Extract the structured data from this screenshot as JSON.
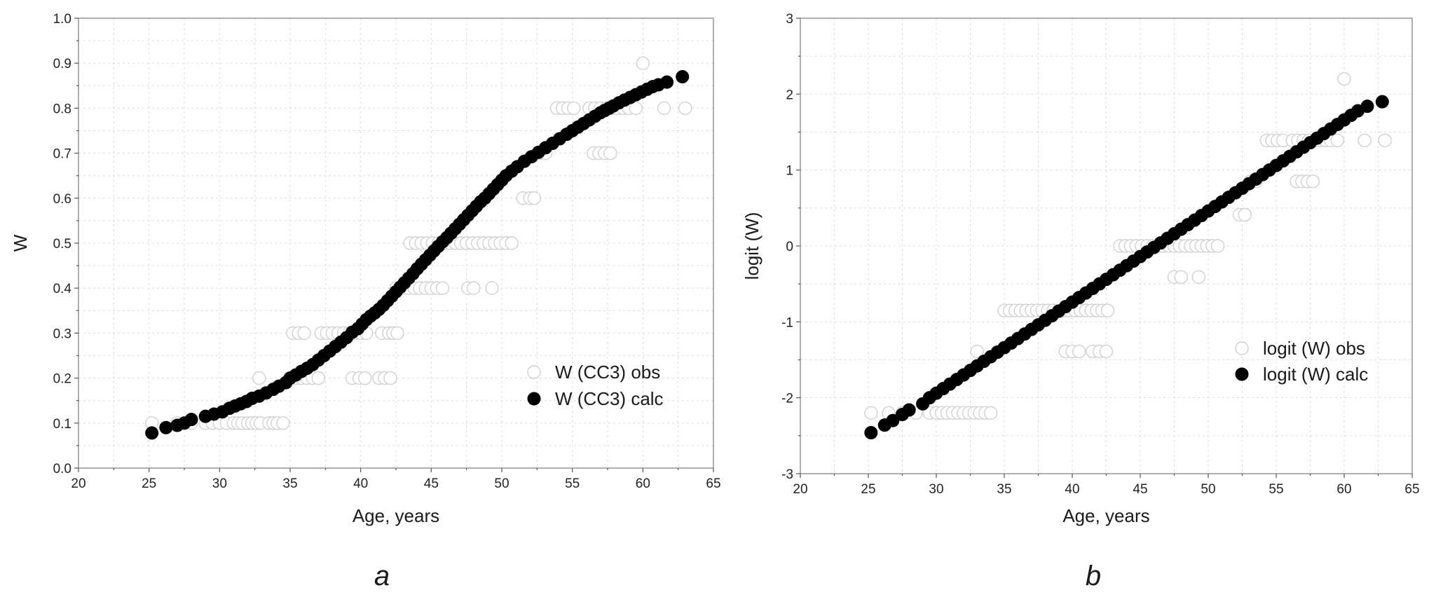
{
  "chart_data": [
    {
      "type": "scatter",
      "panel_label": "a",
      "xlabel": "Age, years",
      "ylabel": "W",
      "xlim": [
        20,
        65
      ],
      "ylim": [
        0.0,
        1.0
      ],
      "xticks": [
        "20",
        "25",
        "30",
        "35",
        "40",
        "45",
        "50",
        "55",
        "60",
        "65"
      ],
      "yticks": [
        "0.0",
        "0.1",
        "0.2",
        "0.3",
        "0.4",
        "0.5",
        "0.6",
        "0.7",
        "0.8",
        "0.9",
        "1.0"
      ],
      "grid": true,
      "legend_position": "bottom-right",
      "series": [
        {
          "name": "W (CC3) obs",
          "marker": "open-circle",
          "color": "#d0d0d0",
          "x": [
            25.2,
            27.0,
            28.0,
            29.0,
            29.5,
            30.0,
            30.5,
            31.0,
            31.3,
            31.6,
            32.0,
            32.3,
            32.6,
            32.9,
            33.5,
            33.8,
            34.1,
            34.5,
            32.8,
            35.0,
            35.4,
            35.8,
            36.2,
            36.6,
            37.0,
            35.2,
            35.6,
            36.0,
            37.2,
            37.6,
            38.0,
            38.4,
            38.8,
            39.2,
            39.6,
            40.0,
            40.4,
            41.5,
            42.0,
            42.3,
            42.6,
            39.4,
            39.9,
            40.3,
            41.3,
            41.7,
            42.1,
            42.5,
            43.0,
            43.4,
            43.8,
            44.2,
            44.6,
            45.0,
            45.4,
            45.8,
            43.5,
            43.9,
            44.3,
            44.7,
            45.1,
            45.5,
            45.9,
            46.3,
            46.7,
            47.1,
            47.5,
            47.9,
            48.3,
            48.7,
            49.1,
            49.5,
            49.9,
            50.3,
            50.7,
            47.6,
            48.0,
            49.3,
            51.5,
            52.0,
            52.3,
            52.7,
            53.1,
            53.9,
            54.3,
            54.7,
            55.1,
            56.2,
            56.6,
            57.0,
            57.4,
            57.8,
            58.2,
            58.6,
            59.0,
            59.5,
            56.5,
            56.9,
            57.3,
            57.7,
            60.0,
            63.0,
            61.5
          ],
          "values": [
            0.1,
            0.1,
            0.1,
            0.1,
            0.1,
            0.1,
            0.1,
            0.1,
            0.1,
            0.1,
            0.1,
            0.1,
            0.1,
            0.1,
            0.1,
            0.1,
            0.1,
            0.1,
            0.2,
            0.2,
            0.2,
            0.2,
            0.2,
            0.2,
            0.2,
            0.3,
            0.3,
            0.3,
            0.3,
            0.3,
            0.3,
            0.3,
            0.3,
            0.3,
            0.3,
            0.3,
            0.3,
            0.3,
            0.3,
            0.3,
            0.3,
            0.2,
            0.2,
            0.2,
            0.2,
            0.2,
            0.2,
            0.4,
            0.4,
            0.4,
            0.4,
            0.4,
            0.4,
            0.4,
            0.4,
            0.4,
            0.5,
            0.5,
            0.5,
            0.5,
            0.5,
            0.5,
            0.5,
            0.5,
            0.5,
            0.5,
            0.5,
            0.5,
            0.5,
            0.5,
            0.5,
            0.5,
            0.5,
            0.5,
            0.5,
            0.4,
            0.4,
            0.4,
            0.6,
            0.6,
            0.6,
            0.7,
            0.7,
            0.8,
            0.8,
            0.8,
            0.8,
            0.8,
            0.8,
            0.8,
            0.8,
            0.8,
            0.8,
            0.8,
            0.8,
            0.8,
            0.7,
            0.7,
            0.7,
            0.7,
            0.9,
            0.8,
            0.8
          ]
        },
        {
          "name": "W (CC3) calc",
          "marker": "filled-circle",
          "color": "#000000",
          "x": [
            25.2,
            26.2,
            27.0,
            27.5,
            28.0,
            29.0,
            29.6,
            30.2,
            30.7,
            31.1,
            31.5,
            31.9,
            32.3,
            32.8,
            33.3,
            33.8,
            34.2,
            34.7,
            35.0,
            35.4,
            35.8,
            36.2,
            36.6,
            37.0,
            37.4,
            37.8,
            38.2,
            38.6,
            39.0,
            39.4,
            39.8,
            40.1,
            40.4,
            40.7,
            41.0,
            41.3,
            41.6,
            41.9,
            42.2,
            42.5,
            42.8,
            43.1,
            43.4,
            43.7,
            44.0,
            44.3,
            44.6,
            44.9,
            45.2,
            45.5,
            45.8,
            46.1,
            46.4,
            46.7,
            47.0,
            47.3,
            47.6,
            47.9,
            48.2,
            48.5,
            48.8,
            49.1,
            49.4,
            49.7,
            50.0,
            50.3,
            50.7,
            51.1,
            51.6,
            52.1,
            52.6,
            53.1,
            53.6,
            54.1,
            54.6,
            55.0,
            55.4,
            55.8,
            56.2,
            56.6,
            57.0,
            57.3,
            57.6,
            57.9,
            58.3,
            58.7,
            59.1,
            59.5,
            59.9,
            60.3,
            60.7,
            61.1,
            61.7,
            62.8
          ],
          "values": [
            0.078,
            0.09,
            0.095,
            0.1,
            0.108,
            0.115,
            0.12,
            0.125,
            0.133,
            0.138,
            0.143,
            0.148,
            0.155,
            0.16,
            0.167,
            0.175,
            0.182,
            0.19,
            0.2,
            0.207,
            0.215,
            0.222,
            0.23,
            0.24,
            0.25,
            0.26,
            0.27,
            0.28,
            0.29,
            0.302,
            0.31,
            0.32,
            0.33,
            0.338,
            0.345,
            0.353,
            0.362,
            0.372,
            0.382,
            0.392,
            0.402,
            0.412,
            0.422,
            0.432,
            0.443,
            0.453,
            0.463,
            0.473,
            0.483,
            0.493,
            0.503,
            0.512,
            0.522,
            0.532,
            0.542,
            0.552,
            0.562,
            0.572,
            0.582,
            0.592,
            0.6,
            0.61,
            0.62,
            0.63,
            0.64,
            0.65,
            0.66,
            0.67,
            0.682,
            0.692,
            0.702,
            0.712,
            0.722,
            0.732,
            0.742,
            0.75,
            0.758,
            0.766,
            0.774,
            0.782,
            0.79,
            0.795,
            0.8,
            0.805,
            0.812,
            0.818,
            0.824,
            0.83,
            0.836,
            0.842,
            0.848,
            0.852,
            0.858,
            0.87
          ]
        }
      ]
    },
    {
      "type": "scatter",
      "panel_label": "b",
      "xlabel": "Age, years",
      "ylabel": "logit (W)",
      "xlim": [
        20,
        65
      ],
      "ylim": [
        -3,
        3
      ],
      "xticks": [
        "20",
        "25",
        "30",
        "35",
        "40",
        "45",
        "50",
        "55",
        "60",
        "65"
      ],
      "yticks": [
        "-3",
        "-2",
        "-1",
        "0",
        "1",
        "2",
        "3"
      ],
      "grid": true,
      "legend_position": "bottom-right",
      "series": [
        {
          "name": "logit (W) obs",
          "marker": "open-circle",
          "color": "#d0d0d0",
          "x": [
            25.2,
            26.5,
            27.5,
            28.5,
            29.5,
            30.0,
            30.4,
            30.8,
            31.2,
            31.6,
            32.0,
            32.4,
            32.8,
            33.2,
            33.6,
            34.0,
            33.0,
            34.5,
            35.0,
            35.4,
            35.8,
            36.2,
            36.6,
            37.0,
            37.4,
            37.8,
            38.2,
            38.6,
            39.0,
            39.4,
            39.8,
            40.2,
            40.6,
            41.0,
            41.4,
            41.8,
            42.2,
            42.6,
            39.5,
            40.0,
            40.5,
            41.5,
            42.0,
            42.5,
            43.5,
            43.9,
            44.3,
            44.7,
            45.1,
            45.5,
            45.9,
            46.3,
            46.7,
            47.1,
            47.5,
            47.9,
            48.3,
            48.7,
            49.1,
            49.5,
            49.9,
            50.3,
            50.7,
            47.5,
            48.0,
            49.3,
            52.3,
            52.7,
            53.1,
            53.5,
            54.3,
            54.7,
            55.1,
            55.5,
            56.2,
            56.6,
            57.0,
            57.4,
            57.8,
            58.2,
            58.6,
            59.0,
            59.5,
            56.5,
            56.9,
            57.3,
            57.7,
            60.0,
            61.5,
            63.0
          ],
          "values": [
            -2.2,
            -2.2,
            -2.2,
            -2.2,
            -2.2,
            -2.2,
            -2.2,
            -2.2,
            -2.2,
            -2.2,
            -2.2,
            -2.2,
            -2.2,
            -2.2,
            -2.2,
            -2.2,
            -1.39,
            -1.39,
            -0.85,
            -0.85,
            -0.85,
            -0.85,
            -0.85,
            -0.85,
            -0.85,
            -0.85,
            -0.85,
            -0.85,
            -0.85,
            -0.85,
            -0.85,
            -0.85,
            -0.85,
            -0.85,
            -0.85,
            -0.85,
            -0.85,
            -0.85,
            -1.39,
            -1.39,
            -1.39,
            -1.39,
            -1.39,
            -1.39,
            0.0,
            0.0,
            0.0,
            0.0,
            0.0,
            0.0,
            0.0,
            0.0,
            0.0,
            0.0,
            0.0,
            0.0,
            0.0,
            0.0,
            0.0,
            0.0,
            0.0,
            0.0,
            0.0,
            -0.41,
            -0.41,
            -0.41,
            0.41,
            0.41,
            0.85,
            0.85,
            1.39,
            1.39,
            1.39,
            1.39,
            1.39,
            1.39,
            1.39,
            1.39,
            1.39,
            1.39,
            1.39,
            1.39,
            1.39,
            0.85,
            0.85,
            0.85,
            0.85,
            2.2,
            1.39,
            1.39
          ]
        },
        {
          "name": "logit (W) calc",
          "marker": "filled-circle",
          "color": "#000000",
          "x": [
            25.2,
            26.2,
            26.8,
            27.5,
            28.0,
            29.0,
            29.5,
            30.0,
            30.5,
            31.0,
            31.5,
            32.0,
            32.5,
            33.0,
            33.5,
            34.0,
            34.5,
            35.0,
            35.5,
            36.0,
            36.5,
            37.0,
            37.5,
            38.0,
            38.5,
            39.0,
            39.5,
            40.0,
            40.5,
            41.0,
            41.5,
            42.0,
            42.5,
            43.0,
            43.5,
            44.0,
            44.5,
            45.0,
            45.5,
            46.0,
            46.5,
            47.0,
            47.5,
            48.0,
            48.5,
            49.0,
            49.5,
            50.0,
            50.5,
            51.0,
            51.5,
            52.0,
            52.5,
            53.0,
            53.5,
            54.0,
            54.5,
            55.0,
            55.5,
            56.0,
            56.5,
            57.0,
            57.5,
            58.0,
            58.5,
            59.0,
            59.5,
            60.0,
            60.5,
            61.0,
            61.7,
            62.8
          ],
          "values": [
            -2.46,
            -2.36,
            -2.3,
            -2.22,
            -2.16,
            -2.08,
            -2.0,
            -1.94,
            -1.88,
            -1.82,
            -1.76,
            -1.7,
            -1.64,
            -1.58,
            -1.52,
            -1.46,
            -1.4,
            -1.34,
            -1.28,
            -1.22,
            -1.16,
            -1.1,
            -1.04,
            -0.98,
            -0.92,
            -0.86,
            -0.8,
            -0.74,
            -0.68,
            -0.62,
            -0.56,
            -0.5,
            -0.44,
            -0.38,
            -0.32,
            -0.26,
            -0.2,
            -0.14,
            -0.08,
            -0.02,
            0.04,
            0.1,
            0.16,
            0.22,
            0.28,
            0.34,
            0.4,
            0.46,
            0.52,
            0.58,
            0.64,
            0.7,
            0.76,
            0.82,
            0.88,
            0.94,
            1.0,
            1.06,
            1.12,
            1.18,
            1.24,
            1.3,
            1.36,
            1.42,
            1.48,
            1.54,
            1.6,
            1.66,
            1.72,
            1.78,
            1.84,
            1.9
          ]
        }
      ]
    }
  ]
}
